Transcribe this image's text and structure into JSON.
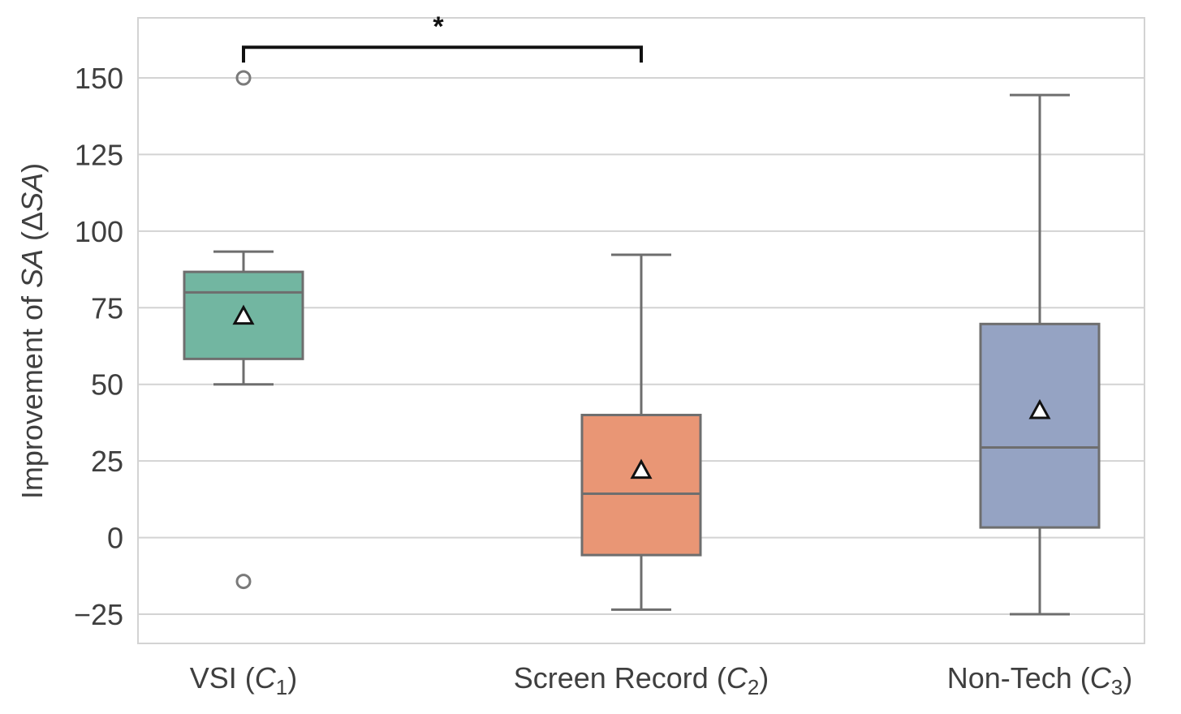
{
  "chart_data": {
    "type": "box",
    "title": "",
    "xlabel": "",
    "ylabel": {
      "prefix": "Improvement of ",
      "italic_part": "SA",
      "suffix": " (Δ",
      "italic_part2": "SA",
      "end": ")"
    },
    "ylim": [
      -33,
      170
    ],
    "yticks": [
      -25,
      0,
      25,
      50,
      75,
      100,
      125,
      150
    ],
    "ytick_labels": [
      "−25",
      "0",
      "25",
      "50",
      "75",
      "100",
      "125",
      "150"
    ],
    "grid": true,
    "categories": [
      {
        "label_main": "VSI (",
        "label_var": "C",
        "label_sub": "1",
        "label_end": ")"
      },
      {
        "label_main": "Screen Record (",
        "label_var": "C",
        "label_sub": "2",
        "label_end": ")"
      },
      {
        "label_main": "Non-Tech (",
        "label_var": "C",
        "label_sub": "3",
        "label_end": ")"
      }
    ],
    "series": [
      {
        "color": "#72b6a1",
        "whisker_low": 50,
        "q1": 58.3,
        "median": 80,
        "q3": 86.7,
        "whisker_high": 93.3,
        "mean": 72,
        "outliers": [
          150,
          -14.3
        ]
      },
      {
        "color": "#e99675",
        "whisker_low": -23.5,
        "q1": -5.7,
        "median": 14.3,
        "q3": 40,
        "whisker_high": 92.3,
        "mean": 21.7,
        "outliers": []
      },
      {
        "color": "#95a3c3",
        "whisker_low": -25,
        "q1": 3.3,
        "median": 29.4,
        "q3": 69.7,
        "whisker_high": 144.4,
        "mean": 41.2,
        "outliers": []
      }
    ],
    "annotations": [
      {
        "text": "*",
        "from_category": 0,
        "to_category": 1,
        "y": 160,
        "tip_y": 155
      }
    ],
    "colors": {
      "grid": "#d3d3d3",
      "frame": "#d3d3d3",
      "box_edge": "#6e6e6e",
      "text": "#3f3f3f",
      "mean_marker_fill": "#ffffff",
      "mean_marker_edge": "#111111",
      "bracket": "#111111"
    }
  }
}
